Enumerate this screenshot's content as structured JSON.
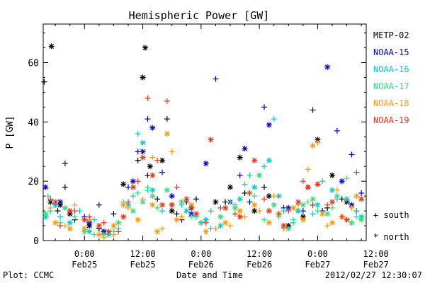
{
  "chart_data": {
    "type": "scatter",
    "title": "Hemispheric Power [GW]",
    "xlabel": "Date and Time",
    "ylabel": "P [GW]",
    "ylim": [
      0,
      73
    ],
    "xlim": [
      -8.5,
      58
    ],
    "x_unit": "hours since 2012-02-25 00:00 UT",
    "yticks": [
      0,
      20,
      40,
      60
    ],
    "xticks": [
      {
        "x": 0,
        "time": "0:00",
        "date": "Feb25"
      },
      {
        "x": 12,
        "time": "12:00",
        "date": "Feb25"
      },
      {
        "x": 24,
        "time": "0:00",
        "date": "Feb26"
      },
      {
        "x": 36,
        "time": "12:00",
        "date": "Feb26"
      },
      {
        "x": 48,
        "time": "0:00",
        "date": "Feb27"
      },
      {
        "x": 60,
        "time": "12:00",
        "date": "Feb27"
      }
    ],
    "grid": false,
    "legend_position": "right",
    "marker_legend": [
      {
        "symbol": "+",
        "label": "south"
      },
      {
        "symbol": "*",
        "label": "north"
      }
    ],
    "series": [
      {
        "name": "METP-02",
        "color": "#000000",
        "south": [
          [
            -8.3,
            53.5
          ],
          [
            -5.5,
            10
          ],
          [
            -4,
            18
          ],
          [
            -2,
            7
          ],
          [
            3,
            4
          ],
          [
            6,
            9
          ],
          [
            11,
            27
          ],
          [
            13,
            22
          ],
          [
            15,
            14
          ],
          [
            17,
            41
          ],
          [
            19,
            9
          ],
          [
            21,
            13
          ],
          [
            23,
            14
          ],
          [
            26,
            10
          ],
          [
            29,
            13
          ],
          [
            33,
            16
          ],
          [
            37,
            18
          ],
          [
            40,
            9
          ],
          [
            44,
            10
          ],
          [
            47,
            12
          ],
          [
            50,
            11
          ],
          [
            53,
            14
          ],
          [
            56,
            10
          ]
        ],
        "north": [
          [
            -6.8,
            65.5
          ],
          [
            -7,
            13
          ],
          [
            -5,
            12
          ],
          [
            -3,
            9
          ],
          [
            1,
            5
          ],
          [
            4,
            3
          ],
          [
            8,
            19
          ],
          [
            12,
            55
          ],
          [
            12.5,
            65
          ],
          [
            13.5,
            25
          ],
          [
            16,
            27
          ],
          [
            18,
            10
          ],
          [
            22,
            11
          ],
          [
            27,
            13
          ],
          [
            30,
            18
          ],
          [
            32,
            28
          ],
          [
            35,
            10
          ],
          [
            38,
            15
          ],
          [
            42,
            5
          ],
          [
            45,
            8
          ],
          [
            48,
            34
          ],
          [
            51,
            22
          ],
          [
            54,
            13
          ]
        ]
      },
      {
        "name": "NOAA-15",
        "color": "#0000cc",
        "south": [
          [
            -6,
            12
          ],
          [
            -4,
            26
          ],
          [
            0,
            8
          ],
          [
            3,
            12
          ],
          [
            9,
            18
          ],
          [
            11,
            30
          ],
          [
            13,
            41
          ],
          [
            16,
            23
          ],
          [
            20,
            7
          ],
          [
            24,
            6
          ],
          [
            27,
            54.5
          ],
          [
            32,
            22
          ],
          [
            34,
            13
          ],
          [
            37,
            45
          ],
          [
            41,
            11
          ],
          [
            45,
            10
          ],
          [
            47,
            44
          ],
          [
            49,
            10
          ],
          [
            52,
            37
          ],
          [
            55,
            29
          ],
          [
            57,
            16
          ]
        ],
        "north": [
          [
            -8,
            18
          ],
          [
            -5,
            13
          ],
          [
            1,
            6
          ],
          [
            4,
            3
          ],
          [
            10,
            20
          ],
          [
            12,
            30
          ],
          [
            14,
            38
          ],
          [
            18,
            15
          ],
          [
            22,
            9
          ],
          [
            25,
            26
          ],
          [
            30,
            13
          ],
          [
            33,
            31
          ],
          [
            38,
            39
          ],
          [
            42,
            11
          ],
          [
            46,
            18
          ],
          [
            50,
            58.5
          ],
          [
            53,
            20
          ],
          [
            55,
            12
          ]
        ]
      },
      {
        "name": "NOAA-16",
        "color": "#00cccc",
        "south": [
          [
            -7,
            10
          ],
          [
            -5,
            8
          ],
          [
            -1,
            10
          ],
          [
            2,
            7
          ],
          [
            7,
            4
          ],
          [
            10,
            15
          ],
          [
            11,
            36
          ],
          [
            13,
            17
          ],
          [
            16,
            10
          ],
          [
            20,
            12
          ],
          [
            23,
            8
          ],
          [
            26,
            4
          ],
          [
            31,
            12
          ],
          [
            34,
            22
          ],
          [
            37,
            25
          ],
          [
            39,
            41
          ],
          [
            41,
            10
          ],
          [
            43,
            6
          ],
          [
            47,
            9
          ],
          [
            49,
            20
          ],
          [
            52,
            14
          ],
          [
            56,
            10
          ]
        ],
        "north": [
          [
            -8,
            8
          ],
          [
            -6,
            12
          ],
          [
            -3,
            6
          ],
          [
            1,
            3
          ],
          [
            5,
            2
          ],
          [
            9,
            12
          ],
          [
            12,
            33
          ],
          [
            14,
            17
          ],
          [
            18,
            12
          ],
          [
            21,
            10
          ],
          [
            25,
            7
          ],
          [
            28,
            5
          ],
          [
            32,
            14
          ],
          [
            35,
            18
          ],
          [
            38,
            27
          ],
          [
            40,
            15
          ],
          [
            44,
            10
          ],
          [
            48,
            12
          ],
          [
            51,
            17
          ],
          [
            54,
            14
          ],
          [
            57,
            8
          ]
        ]
      },
      {
        "name": "NOAA-17",
        "color": "#33dd77",
        "south": [
          [
            -7.5,
            15
          ],
          [
            -5,
            6
          ],
          [
            -2,
            8
          ],
          [
            2,
            2
          ],
          [
            6,
            3
          ],
          [
            8,
            13
          ],
          [
            11,
            16
          ],
          [
            13,
            18
          ],
          [
            15,
            11
          ],
          [
            18,
            12
          ],
          [
            22,
            8
          ],
          [
            26,
            10
          ],
          [
            30,
            13
          ],
          [
            33,
            19
          ],
          [
            35,
            15
          ],
          [
            37,
            7
          ],
          [
            40,
            8
          ],
          [
            43,
            7
          ],
          [
            46,
            13
          ],
          [
            48,
            10
          ],
          [
            51,
            11
          ],
          [
            54,
            21
          ],
          [
            56,
            8
          ]
        ],
        "north": [
          [
            -8,
            9
          ],
          [
            -4,
            11
          ],
          [
            0,
            3
          ],
          [
            4,
            2
          ],
          [
            7,
            6
          ],
          [
            10,
            10
          ],
          [
            12,
            13
          ],
          [
            14,
            15
          ],
          [
            17,
            17
          ],
          [
            20,
            13
          ],
          [
            24,
            6
          ],
          [
            28,
            8
          ],
          [
            31,
            11
          ],
          [
            34,
            16
          ],
          [
            36,
            22
          ],
          [
            39,
            12
          ],
          [
            42,
            4
          ],
          [
            45,
            12
          ],
          [
            47,
            14
          ],
          [
            50,
            9
          ],
          [
            52,
            15
          ],
          [
            55,
            6
          ],
          [
            57,
            7
          ]
        ]
      },
      {
        "name": "NOAA-18",
        "color": "#ff9900",
        "south": [
          [
            -7,
            11
          ],
          [
            -4,
            5
          ],
          [
            -2,
            12
          ],
          [
            1,
            7
          ],
          [
            4,
            1
          ],
          [
            6,
            2
          ],
          [
            9,
            11
          ],
          [
            12,
            14
          ],
          [
            14,
            28
          ],
          [
            16,
            4
          ],
          [
            18,
            30
          ],
          [
            20,
            8
          ],
          [
            23,
            9
          ],
          [
            27,
            4
          ],
          [
            30,
            5
          ],
          [
            33,
            8
          ],
          [
            36,
            10
          ],
          [
            39,
            15
          ],
          [
            41,
            4
          ],
          [
            44,
            12
          ],
          [
            46,
            24
          ],
          [
            48,
            33
          ],
          [
            50,
            5
          ],
          [
            52,
            17
          ],
          [
            55,
            11
          ]
        ],
        "north": [
          [
            -6,
            6
          ],
          [
            -3,
            4
          ],
          [
            0,
            4
          ],
          [
            3,
            2
          ],
          [
            6,
            5
          ],
          [
            8,
            12
          ],
          [
            11,
            7
          ],
          [
            14,
            12
          ],
          [
            15,
            3
          ],
          [
            17,
            36
          ],
          [
            19,
            7
          ],
          [
            22,
            12
          ],
          [
            25,
            3
          ],
          [
            29,
            6
          ],
          [
            32,
            10
          ],
          [
            35,
            12
          ],
          [
            38,
            6
          ],
          [
            40,
            9
          ],
          [
            43,
            11
          ],
          [
            45,
            7
          ],
          [
            47,
            32
          ],
          [
            49,
            9
          ],
          [
            51,
            6
          ],
          [
            53,
            8
          ],
          [
            56,
            15
          ]
        ]
      },
      {
        "name": "NOAA-19",
        "color": "#ee3311",
        "south": [
          [
            -7,
            14
          ],
          [
            -5,
            5
          ],
          [
            -2,
            10
          ],
          [
            1,
            8
          ],
          [
            4,
            6
          ],
          [
            7,
            3
          ],
          [
            9,
            13
          ],
          [
            11,
            20
          ],
          [
            13,
            48
          ],
          [
            15,
            27
          ],
          [
            17,
            47
          ],
          [
            19,
            18
          ],
          [
            22,
            11
          ],
          [
            25,
            6
          ],
          [
            28,
            11
          ],
          [
            31,
            9
          ],
          [
            34,
            16
          ],
          [
            37,
            14
          ],
          [
            40,
            9
          ],
          [
            42,
            10
          ],
          [
            45,
            20
          ],
          [
            47,
            12
          ],
          [
            50,
            12
          ],
          [
            53,
            8
          ],
          [
            56,
            23
          ]
        ],
        "north": [
          [
            -6,
            13
          ],
          [
            -3,
            10
          ],
          [
            0,
            7
          ],
          [
            3,
            5
          ],
          [
            5,
            3
          ],
          [
            8,
            8
          ],
          [
            10,
            18
          ],
          [
            12,
            28
          ],
          [
            14,
            22
          ],
          [
            16,
            12
          ],
          [
            18,
            12
          ],
          [
            21,
            14
          ],
          [
            23,
            9
          ],
          [
            26,
            34
          ],
          [
            29,
            11
          ],
          [
            32,
            8
          ],
          [
            35,
            27
          ],
          [
            38,
            10
          ],
          [
            41,
            5
          ],
          [
            44,
            13
          ],
          [
            46,
            18
          ],
          [
            48,
            19
          ],
          [
            51,
            13
          ],
          [
            54,
            7
          ],
          [
            57,
            14
          ]
        ]
      }
    ]
  },
  "footer": {
    "plot_credit": "Plot: CCMC",
    "timestamp": "2012/02/27 12:30:07"
  }
}
